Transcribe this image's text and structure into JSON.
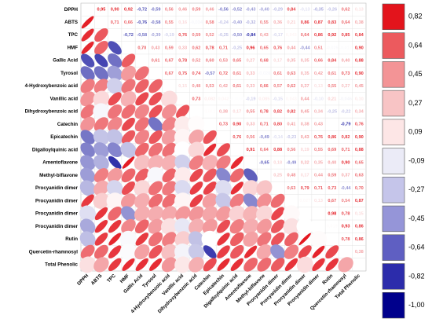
{
  "chart_data": {
    "type": "correlation",
    "variables": [
      "DPPH",
      "ABTS",
      "TPC",
      "HMF",
      "Gallic Acid",
      "Tyrosol",
      "4-Hydroxybenzoic acid",
      "Vanillic acid",
      "Dihydroxybenzoic acid",
      "Catechin",
      "Epicatechin",
      "Digalloylquinic acid",
      "Amentoflavone",
      "Methyl-biflavone",
      "Procyanidin dimer",
      "Procyanidin dimer",
      "Procyanidin dimer",
      "Procyanidin dimer",
      "Rutin",
      "Quercetin-rhamnosyl",
      "Total Phenolic"
    ],
    "values": [
      [
        0.95,
        0.9,
        0.92,
        -0.72,
        -0.59,
        0.56,
        0.46,
        0.59,
        0.46,
        -0.56,
        -0.52,
        -0.43,
        -0.4,
        -0.29,
        0.84,
        -0.13,
        -0.35,
        -0.26,
        0.62,
        0.13
      ],
      [
        0.71,
        0.66,
        -0.76,
        -0.58,
        0.55,
        0.16,
        -0.034,
        0.58,
        -0.24,
        -0.4,
        -0.32,
        0.55,
        0.36,
        0.21,
        0.86,
        0.87,
        0.83,
        0.64,
        0.38
      ],
      [
        -0.72,
        -0.58,
        -0.39,
        -0.19,
        0.76,
        0.59,
        0.52,
        -0.25,
        -0.5,
        -0.84,
        0.43,
        -0.17,
        0.043,
        0.64,
        0.86,
        0.92,
        0.85,
        0.84
      ],
      [
        0.7,
        0.43,
        0.59,
        0.33,
        0.62,
        0.78,
        0.71,
        -0.25,
        0.96,
        0.65,
        0.76,
        0.44,
        -0.44,
        0.51,
        -0.025,
        -0.017,
        0.9
      ],
      [
        0.61,
        0.67,
        0.78,
        0.52,
        0.6,
        0.53,
        0.65,
        0.27,
        0.68,
        0.17,
        0.35,
        0.35,
        0.66,
        0.84,
        0.4,
        0.88
      ],
      [
        0.67,
        0.75,
        0.74,
        -0.57,
        0.72,
        0.61,
        0.33,
        -0.028,
        0.61,
        0.63,
        0.35,
        0.42,
        0.61,
        0.73,
        0.9
      ],
      [
        0.15,
        0.48,
        0.53,
        0.42,
        0.61,
        0.33,
        0.66,
        0.57,
        0.62,
        0.37,
        0.13,
        0.55,
        0.27,
        0.45
      ],
      [
        0.73,
        0.082,
        0.042,
        -0.0039,
        -0.19,
        0.085,
        -0.15,
        0.043,
        0.44,
        -0.1,
        0.21,
        -0.046,
        0.1
      ],
      [
        0.013,
        0.38,
        0.17,
        0.55,
        0.78,
        0.82,
        0.82,
        0.45,
        0.34,
        -0.25,
        -0.22,
        0.34
      ],
      [
        0.73,
        0.9,
        0.33,
        0.71,
        0.8,
        0.41,
        0.38,
        0.43,
        0.00062,
        -0.79,
        0.76
      ],
      [
        0.76,
        0.56,
        -0.49,
        -0.14,
        -0.23,
        0.43,
        0.76,
        0.86,
        0.82,
        0.9
      ],
      [
        0.91,
        0.64,
        0.88,
        0.56,
        0.19,
        0.55,
        0.69,
        0.71,
        0.88
      ],
      [
        -0.65,
        0.18,
        -0.49,
        0.32,
        0.35,
        0.4,
        0.9,
        0.65
      ],
      [
        0.25,
        0.48,
        0.17,
        0.44,
        0.59,
        0.37,
        0.63
      ],
      [
        0.63,
        0.79,
        0.71,
        0.73,
        -0.44,
        0.7
      ],
      [
        0.027,
        0.13,
        0.67,
        0.54,
        0.87
      ],
      [
        0.00062,
        0.98,
        0.78,
        0.15
      ],
      [
        0.019,
        0.93,
        0.86
      ],
      [
        0.78,
        0.86
      ],
      [
        0.38
      ]
    ],
    "value_labels": [
      [
        "0,95",
        "0,90",
        "0,92",
        "-0,72",
        "-0,59",
        "0,56",
        "0,46",
        "0,59",
        "0,46",
        "-0,56",
        "-0,52",
        "-0,43",
        "-0,40",
        "-0,29",
        "0,84",
        "-0,13",
        "-0,35",
        "-0,26",
        "0,62",
        "0,13"
      ],
      [
        "0,71",
        "0,66",
        "-0,76",
        "-0,58",
        "0,55",
        "0,16",
        "-0,034",
        "0,58",
        "-0,24",
        "-0,40",
        "-0,32",
        "0,55",
        "0,36",
        "0,21",
        "0,86",
        "0,87",
        "0,83",
        "0,64",
        "0,38"
      ],
      [
        "-0,72",
        "-0,58",
        "-0,39",
        "-0,19",
        "0,76",
        "0,59",
        "0,52",
        "-0,25",
        "-0,50",
        "-0,84",
        "0,43",
        "-0,17",
        "0,043",
        "0,64",
        "0,86",
        "0,92",
        "0,85",
        "0,84"
      ],
      [
        "0,70",
        "0,43",
        "0,59",
        "0,33",
        "0,62",
        "0,78",
        "0,71",
        "-0,25",
        "0,96",
        "0,65",
        "0,76",
        "0,44",
        "-0,44",
        "0,51",
        "-0,025",
        "-0,017",
        "0,90"
      ],
      [
        "0,61",
        "0,67",
        "0,78",
        "0,52",
        "0,60",
        "0,53",
        "0,65",
        "0,27",
        "0,68",
        "0,17",
        "0,35",
        "0,35",
        "0,66",
        "0,84",
        "0,40",
        "0,88"
      ],
      [
        "0,67",
        "0,75",
        "0,74",
        "-0,57",
        "0,72",
        "0,61",
        "0,33",
        "-0,028",
        "0,61",
        "0,63",
        "0,35",
        "0,42",
        "0,61",
        "0,73",
        "0,90"
      ],
      [
        "0,15",
        "0,48",
        "0,53",
        "0,42",
        "0,61",
        "0,33",
        "0,66",
        "0,57",
        "0,62",
        "0,37",
        "0,13",
        "0,55",
        "0,27",
        "0,45"
      ],
      [
        "0,73",
        "0,082",
        "0,042",
        "-0,0039",
        "-0,19",
        "0,085",
        "-0,15",
        "0,043",
        "0,44",
        "-0,10",
        "0,21",
        "-0,046",
        "0,10"
      ],
      [
        "0,013",
        "0,38",
        "0,17",
        "0,55",
        "0,78",
        "0,82",
        "0,82",
        "0,45",
        "0,34",
        "-0,25",
        "-0,22",
        "0,34"
      ],
      [
        "0,73",
        "0,90",
        "0,33",
        "0,71",
        "0,80",
        "0,41",
        "0,38",
        "0,43",
        "6,2E-4",
        "-0,79",
        "0,76"
      ],
      [
        "0,76",
        "0,56",
        "-0,49",
        "-0,14",
        "-0,23",
        "0,43",
        "0,76",
        "0,86",
        "0,82",
        "0,90"
      ],
      [
        "0,91",
        "0,64",
        "0,88",
        "0,56",
        "0,19",
        "0,55",
        "0,69",
        "0,71",
        "0,88"
      ],
      [
        "-0,65",
        "0,18",
        "-0,49",
        "0,32",
        "0,35",
        "0,40",
        "0,90",
        "0,65"
      ],
      [
        "0,25",
        "0,48",
        "0,17",
        "0,44",
        "0,59",
        "0,37",
        "0,63"
      ],
      [
        "0,63",
        "0,79",
        "0,71",
        "0,73",
        "-0,44",
        "0,70"
      ],
      [
        "0,027",
        "0,13",
        "0,67",
        "0,54",
        "0,87"
      ],
      [
        "6,2E-4",
        "0,98",
        "0,78",
        "0,15"
      ],
      [
        "0,019",
        "0,93",
        "0,86"
      ],
      [
        "0,78",
        "0,86"
      ],
      [
        "0,38"
      ]
    ],
    "positive_color": "#e3141c",
    "negative_color": "#0a0a9a",
    "colorbar": {
      "ticks": [
        {
          "value": 0.82,
          "label": "0,82"
        },
        {
          "value": 0.64,
          "label": "0,64"
        },
        {
          "value": 0.45,
          "label": "0,45"
        },
        {
          "value": 0.27,
          "label": "0,27"
        },
        {
          "value": 0.09,
          "label": "0,09"
        },
        {
          "value": -0.09,
          "label": "-0,09"
        },
        {
          "value": -0.27,
          "label": "-0,27"
        },
        {
          "value": -0.45,
          "label": "-0,45"
        },
        {
          "value": -0.64,
          "label": "-0,64"
        },
        {
          "value": -0.82,
          "label": "-0,82"
        },
        {
          "value": -1,
          "label": "-1,00"
        }
      ],
      "colors": [
        "#e3141c",
        "#ec5a5e",
        "#f39496",
        "#f8c4c5",
        "#fde6e6",
        "#ebebf7",
        "#c5c5ea",
        "#9595d8",
        "#5f5fc2",
        "#2c2cab",
        "#00008c"
      ]
    }
  }
}
